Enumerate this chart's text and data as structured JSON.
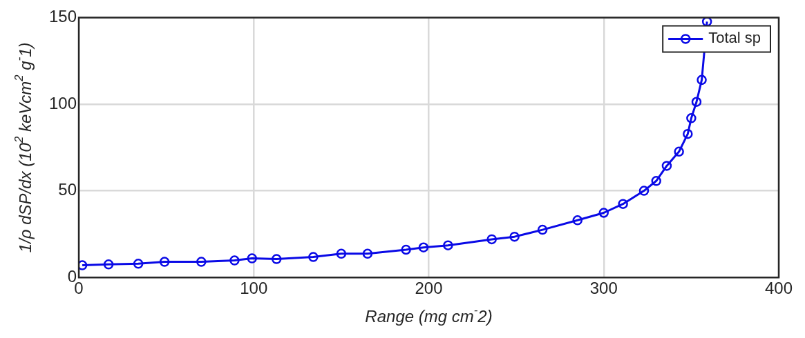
{
  "chart_data": {
    "type": "line",
    "xlabel": "Range (mg cm$^{-}$2)",
    "ylabel": "1/ρ dSP/dx (10$^{2}$ keVcm$^{2}$ g$^{-}$1)",
    "series": [
      {
        "name": "Total sp",
        "color": "#0a0ae6",
        "x": [
          2,
          17,
          34,
          49,
          70,
          89,
          99,
          113,
          134,
          150,
          165,
          187,
          197,
          211,
          236,
          249,
          265,
          285,
          300,
          311,
          323,
          330,
          336,
          343,
          348,
          350,
          353,
          356,
          359
        ],
        "values": [
          7,
          7.5,
          7.9,
          9,
          9,
          9.8,
          11,
          10.6,
          11.8,
          13.7,
          13.7,
          16,
          17.3,
          18.5,
          22,
          23.5,
          27.5,
          33,
          37.3,
          42.4,
          50,
          55.7,
          64.4,
          72.6,
          82.8,
          91.9,
          101.3,
          114,
          147.6
        ]
      }
    ],
    "xlim": [
      0,
      400
    ],
    "xticks": [
      0,
      100,
      200,
      300,
      400
    ],
    "ylim": [
      0,
      150
    ],
    "yticks": [
      0,
      50,
      100,
      150
    ],
    "grid": true,
    "legend": "top right",
    "marker": "circle",
    "line_style": "solid"
  }
}
